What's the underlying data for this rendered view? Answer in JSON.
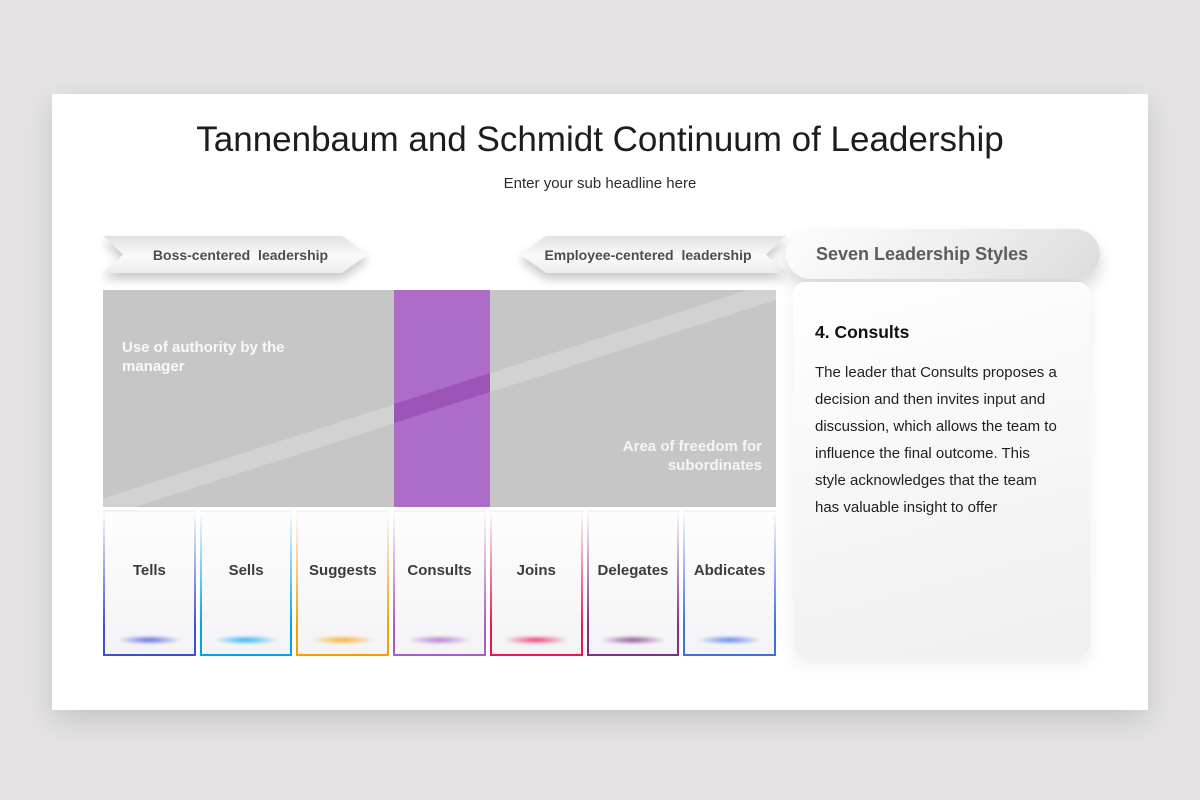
{
  "slide": {
    "title": "Tannenbaum and Schmidt Continuum of Leadership",
    "subtitle": "Enter your sub headline here"
  },
  "continuum": {
    "left_ribbon": "Boss-centered leadership",
    "right_ribbon": "Employee-centered leadership",
    "authority_label": "Use of authority by the\nmanager",
    "freedom_label": "Area of freedom for\nsubordinates",
    "area_color": "#c7c6c6",
    "highlight_color": "#ad6cc7",
    "highlighted_style": "Consults"
  },
  "styles_cards": [
    {
      "label": "Tells",
      "color": "#3f51d1"
    },
    {
      "label": "Sells",
      "color": "#00a3ef"
    },
    {
      "label": "Suggests",
      "color": "#f6a000"
    },
    {
      "label": "Consults",
      "color": "#a55cc8"
    },
    {
      "label": "Joins",
      "color": "#ec1454"
    },
    {
      "label": "Delegates",
      "color": "#7b2f86"
    },
    {
      "label": "Abdicates",
      "color": "#3e6ee0"
    }
  ],
  "panel": {
    "header": "Seven Leadership Styles",
    "heading": "4. Consults",
    "body": "The leader that Consults proposes a\ndecision and then invites input and\ndiscussion, which allows the team to\ninfluence the final outcome. This\nstyle acknowledges that the team\nhas valuable insight to offer"
  }
}
